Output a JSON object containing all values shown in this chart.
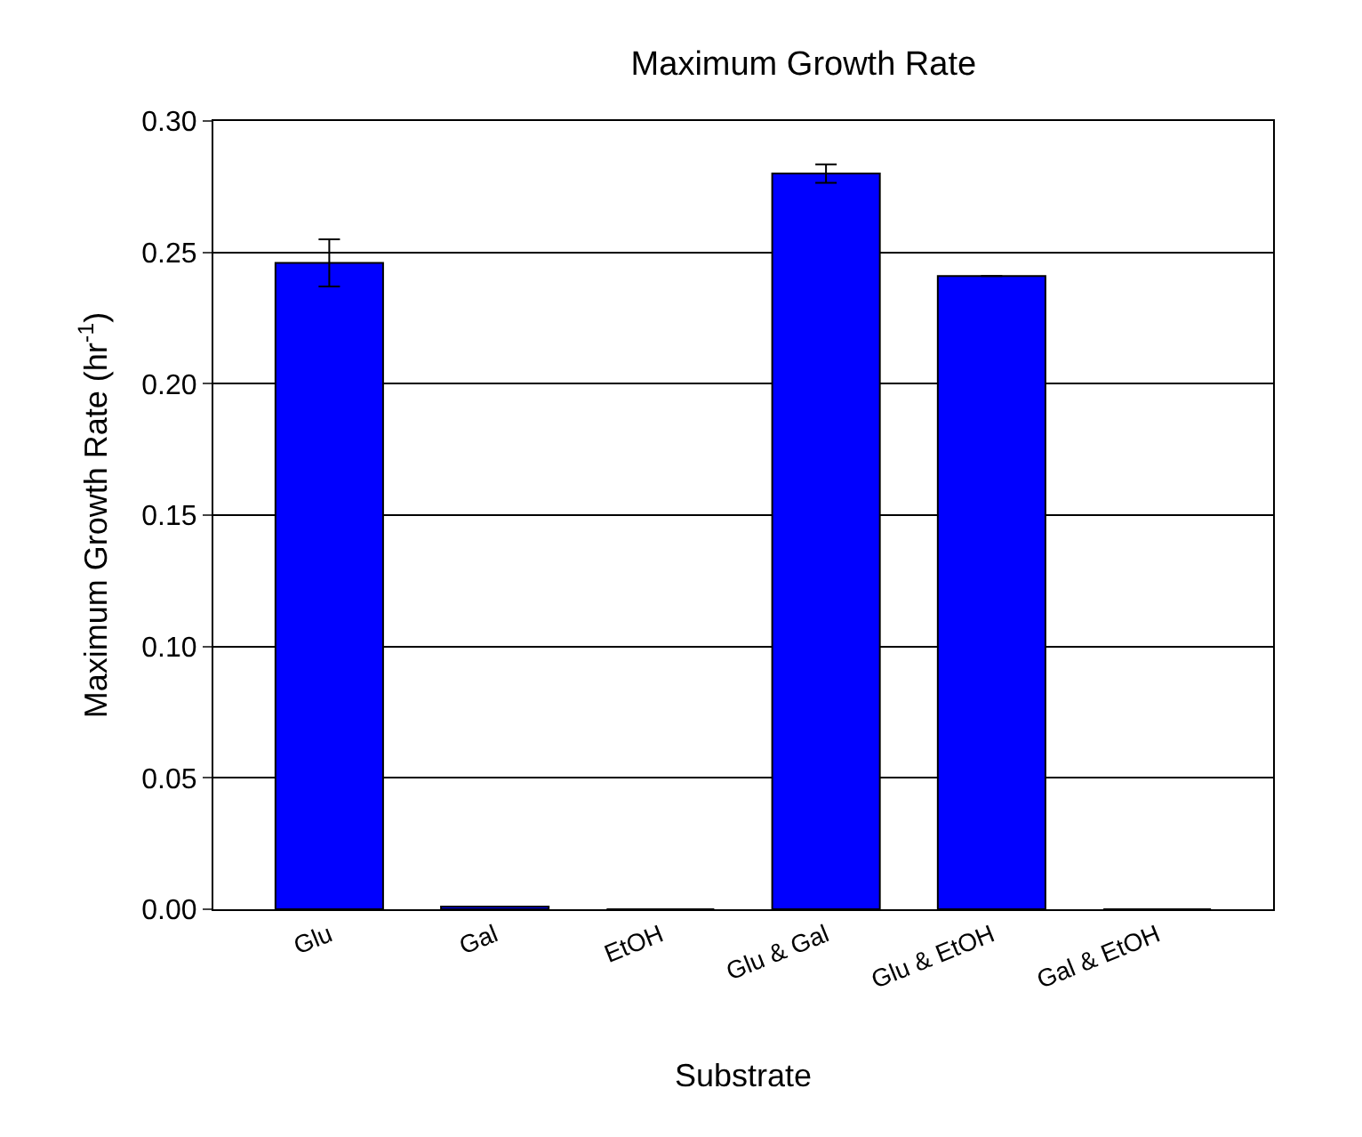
{
  "chart_data": {
    "type": "bar",
    "title": "Maximum Growth Rate",
    "xlabel": "Substrate",
    "ylabel": "Maximum Growth Rate (hr$^{-1}$)",
    "categories": [
      "Glu",
      "Gal",
      "EtOH",
      "Glu & Gal",
      "Glu & EtOH",
      "Gal & EtOH"
    ],
    "values": [
      0.246,
      0.001,
      0,
      0.28,
      0.241,
      0
    ],
    "errors": [
      0.009,
      null,
      null,
      0.0035,
      null,
      null
    ],
    "color": "#0000ff",
    "ylim": [
      0,
      0.3
    ],
    "yticks": [
      {
        "value": 0,
        "label": "0.00"
      },
      {
        "value": 0.05,
        "label": "0.05"
      },
      {
        "value": 0.1,
        "label": "0.10"
      },
      {
        "value": 0.15,
        "label": "0.15"
      },
      {
        "value": 0.2,
        "label": "0.20"
      },
      {
        "value": 0.25,
        "label": "0.25"
      },
      {
        "value": 0.3,
        "label": "0.30"
      }
    ],
    "grid": "y"
  }
}
